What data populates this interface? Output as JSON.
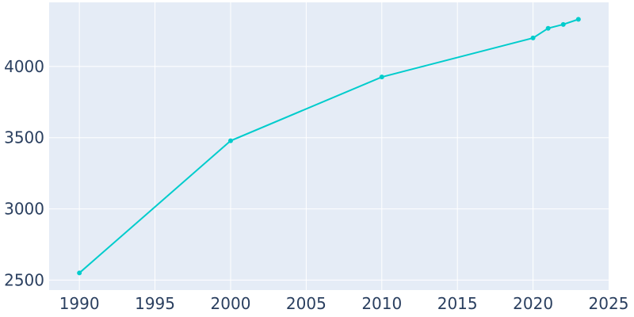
{
  "chart_data": {
    "type": "line",
    "title": "",
    "xlabel": "",
    "ylabel": "",
    "xlim": [
      1988,
      2025
    ],
    "ylim": [
      2430,
      4450
    ],
    "x_ticks": [
      1990,
      1995,
      2000,
      2005,
      2010,
      2015,
      2020,
      2025
    ],
    "y_ticks": [
      2500,
      3000,
      3500,
      4000
    ],
    "grid": true,
    "legend": "none",
    "colors": {
      "plot_background": "#e5ecf6",
      "grid": "#ffffff",
      "line": "#00cccc",
      "tick_text": "#2a3f5f"
    },
    "series": [
      {
        "x": [
          1990,
          2000,
          2010,
          2020,
          2021,
          2022,
          2023
        ],
        "y": [
          2550,
          3478,
          3926,
          4200,
          4268,
          4295,
          4331
        ]
      }
    ]
  }
}
